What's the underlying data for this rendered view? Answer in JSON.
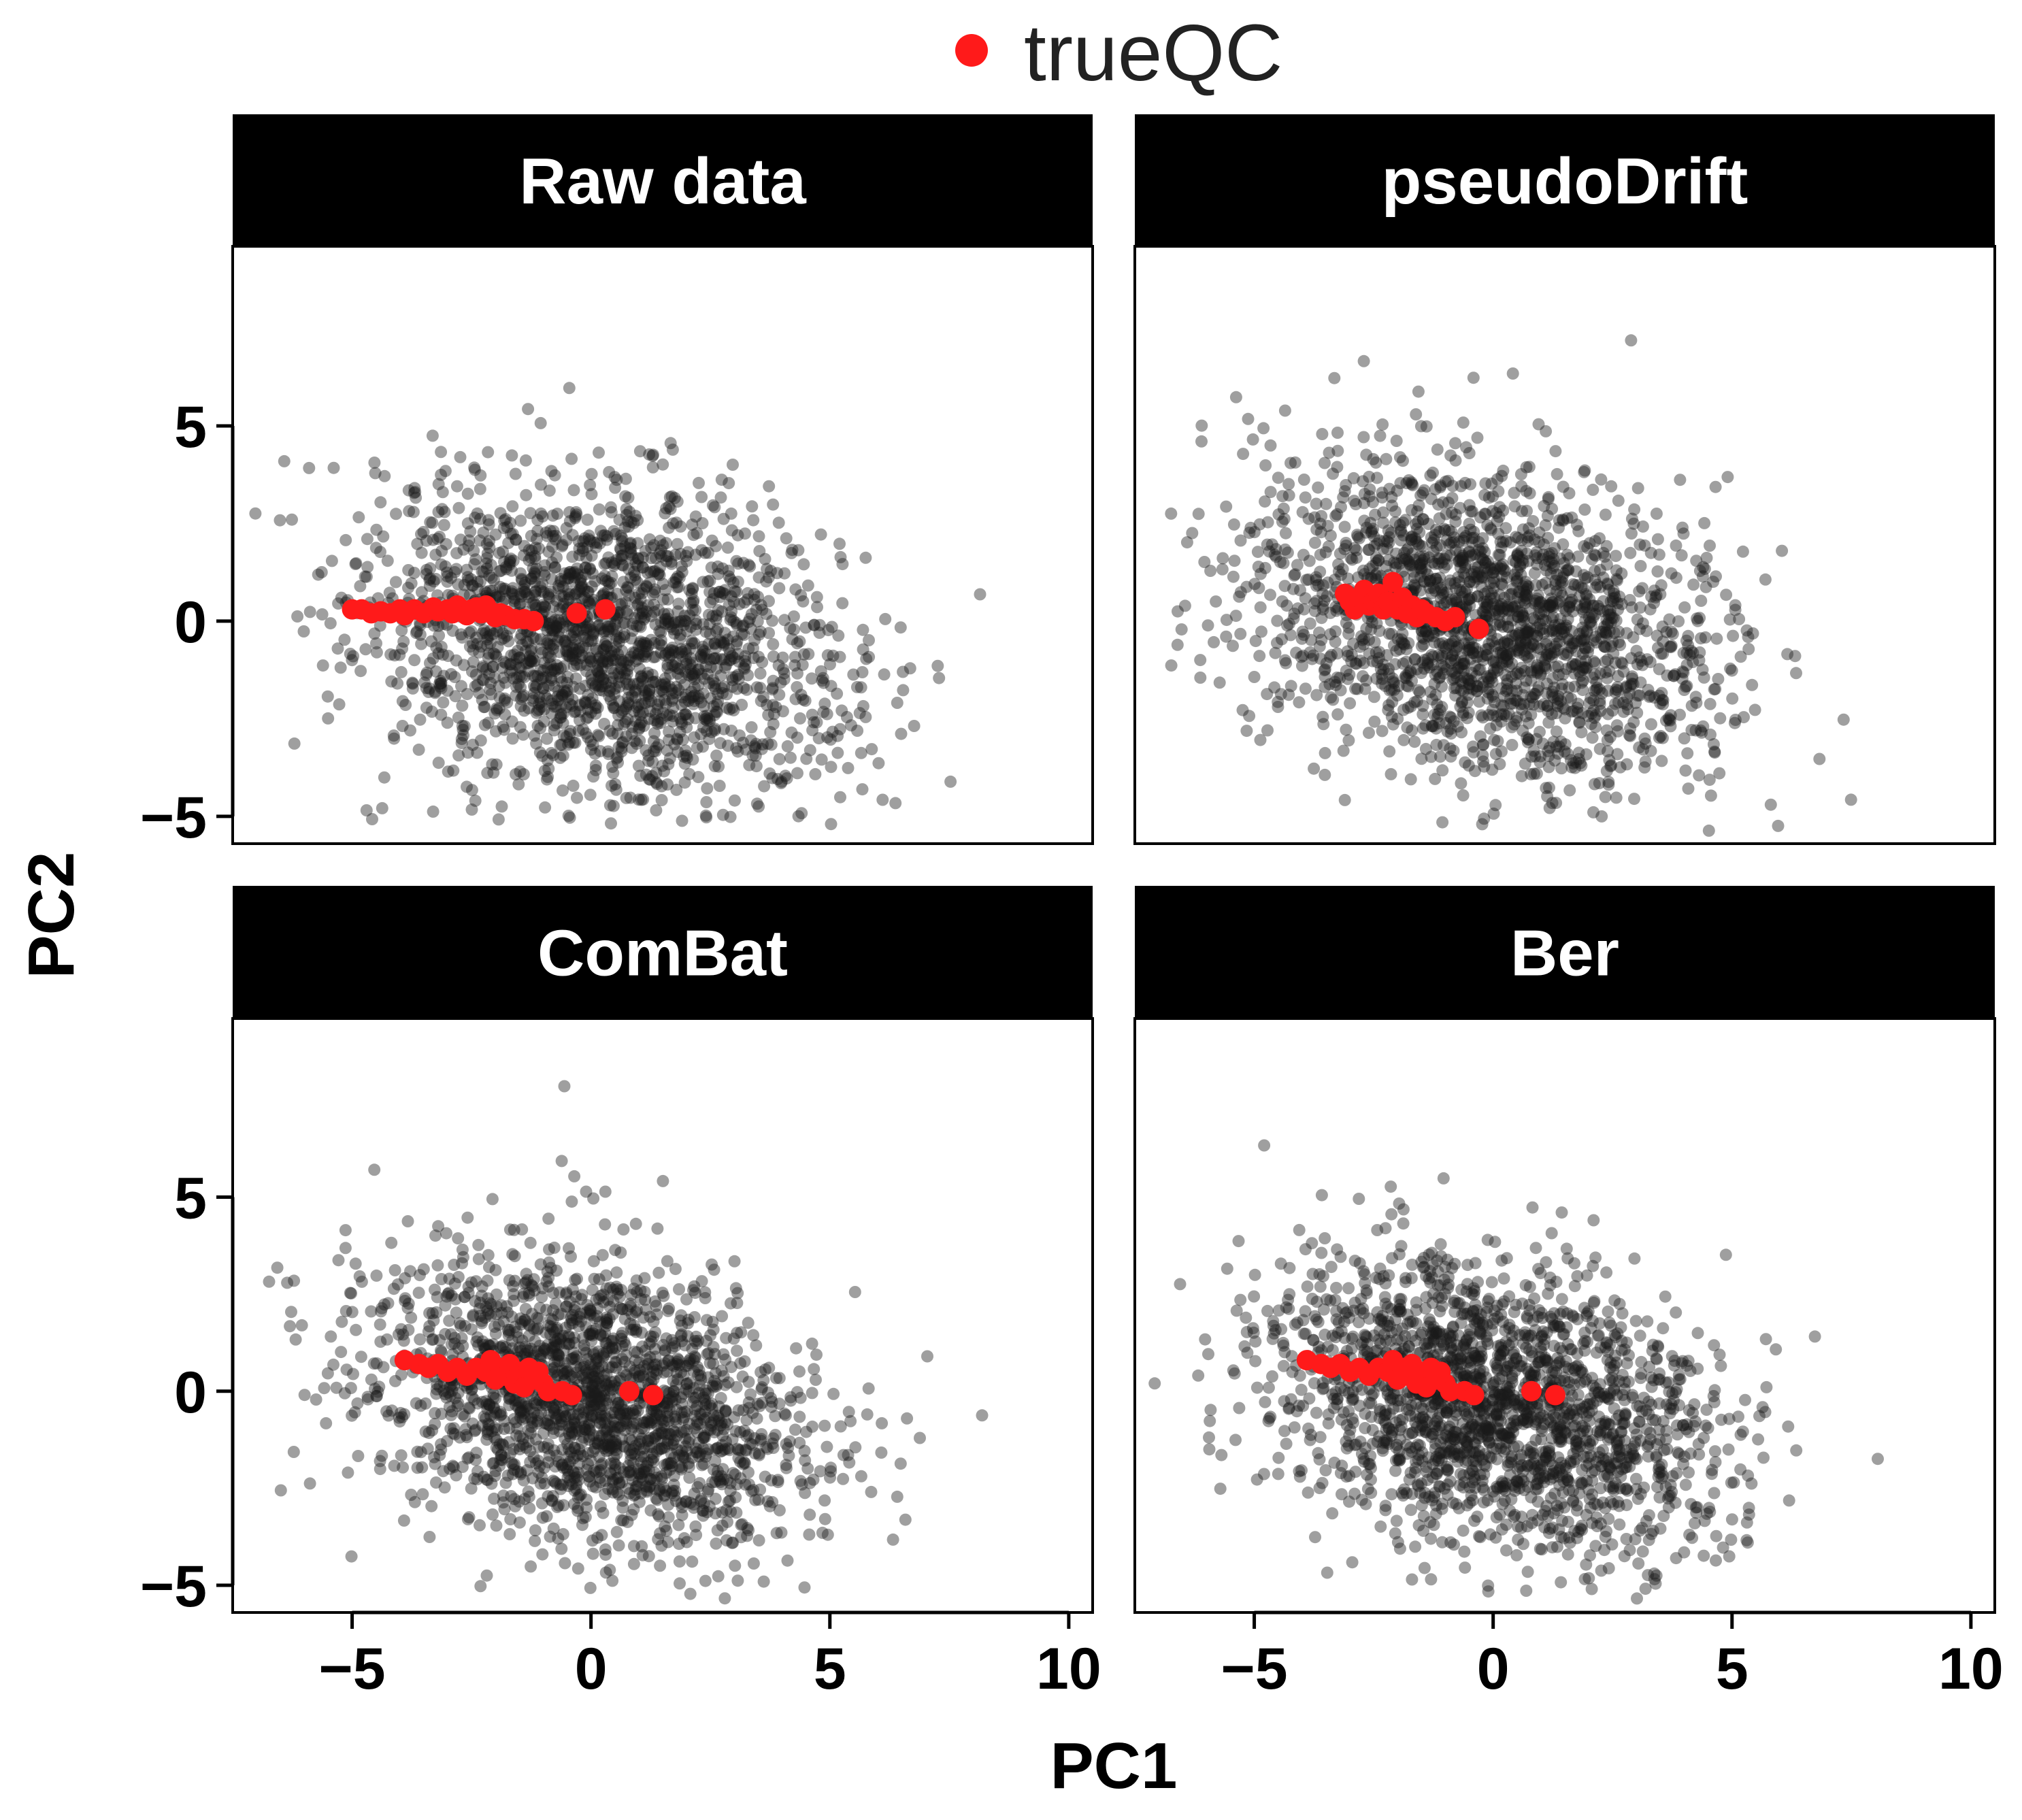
{
  "chart_data": {
    "type": "scatter",
    "xlabel": "PC1",
    "ylabel": "PC2",
    "xlim": [
      -7.5,
      10.5
    ],
    "ylim": [
      -5.7,
      9.6
    ],
    "x_ticks": [
      -5,
      0,
      5,
      10
    ],
    "x_tick_labels": [
      "−5",
      "0",
      "5",
      "10"
    ],
    "y_ticks": [
      -5,
      0,
      5
    ],
    "y_tick_labels": [
      "−5",
      "0",
      "5"
    ],
    "legend": {
      "label": "trueQC",
      "color": "#ff1a1a",
      "position": "top-center"
    },
    "colors": {
      "background_points": "#1a1a1a",
      "qc_points": "#ff1a1a",
      "strip": "#000000",
      "strip_text": "#ffffff"
    },
    "layout": "2x2 facets, shared axes",
    "panels": [
      {
        "title": "Raw data",
        "background_cloud": {
          "n": 2000,
          "center": [
            0.3,
            -0.5
          ],
          "sd": [
            2.5,
            2.0
          ],
          "correlation": -0.25
        },
        "qc_points": [
          [
            -5.0,
            0.3
          ],
          [
            -4.8,
            0.3
          ],
          [
            -4.6,
            0.2
          ],
          [
            -4.4,
            0.25
          ],
          [
            -4.2,
            0.2
          ],
          [
            -4.0,
            0.3
          ],
          [
            -3.9,
            0.15
          ],
          [
            -3.7,
            0.3
          ],
          [
            -3.5,
            0.2
          ],
          [
            -3.3,
            0.35
          ],
          [
            -3.2,
            0.25
          ],
          [
            -3.0,
            0.3
          ],
          [
            -2.9,
            0.2
          ],
          [
            -2.8,
            0.4
          ],
          [
            -2.7,
            0.3
          ],
          [
            -2.6,
            0.15
          ],
          [
            -2.5,
            0.3
          ],
          [
            -2.4,
            0.35
          ],
          [
            -2.3,
            0.2
          ],
          [
            -2.2,
            0.4
          ],
          [
            -2.1,
            0.25
          ],
          [
            -2.0,
            0.1
          ],
          [
            -1.9,
            0.2
          ],
          [
            -1.8,
            0.15
          ],
          [
            -1.6,
            0.05
          ],
          [
            -1.4,
            0.05
          ],
          [
            -1.2,
            0.0
          ],
          [
            -0.3,
            0.2
          ],
          [
            0.3,
            0.3
          ]
        ]
      },
      {
        "title": "pseudoDrift",
        "background_cloud": {
          "n": 2000,
          "center": [
            -0.2,
            0.0
          ],
          "sd": [
            2.4,
            2.0
          ],
          "correlation": -0.3
        },
        "qc_points": [
          [
            -3.1,
            0.7
          ],
          [
            -3.0,
            0.5
          ],
          [
            -2.9,
            0.3
          ],
          [
            -2.8,
            0.6
          ],
          [
            -2.7,
            0.8
          ],
          [
            -2.6,
            0.4
          ],
          [
            -2.5,
            0.5
          ],
          [
            -2.4,
            0.7
          ],
          [
            -2.3,
            0.3
          ],
          [
            -2.2,
            0.5
          ],
          [
            -2.1,
            1.0
          ],
          [
            -2.0,
            0.3
          ],
          [
            -1.9,
            0.6
          ],
          [
            -1.8,
            0.2
          ],
          [
            -1.7,
            0.4
          ],
          [
            -1.6,
            0.1
          ],
          [
            -1.5,
            0.3
          ],
          [
            -1.4,
            0.2
          ],
          [
            -1.2,
            0.1
          ],
          [
            -1.0,
            0.0
          ],
          [
            -0.8,
            0.1
          ],
          [
            -0.3,
            -0.2
          ]
        ]
      },
      {
        "title": "ComBat",
        "background_cloud": {
          "n": 2000,
          "center": [
            0.0,
            -0.3
          ],
          "sd": [
            2.3,
            1.9
          ],
          "correlation": -0.3
        },
        "qc_points": [
          [
            -3.9,
            0.8
          ],
          [
            -3.6,
            0.7
          ],
          [
            -3.4,
            0.6
          ],
          [
            -3.2,
            0.7
          ],
          [
            -3.0,
            0.5
          ],
          [
            -2.8,
            0.6
          ],
          [
            -2.6,
            0.4
          ],
          [
            -2.4,
            0.6
          ],
          [
            -2.2,
            0.5
          ],
          [
            -2.1,
            0.8
          ],
          [
            -2.0,
            0.3
          ],
          [
            -1.9,
            0.6
          ],
          [
            -1.8,
            0.4
          ],
          [
            -1.7,
            0.7
          ],
          [
            -1.6,
            0.2
          ],
          [
            -1.5,
            0.5
          ],
          [
            -1.4,
            0.1
          ],
          [
            -1.3,
            0.6
          ],
          [
            -1.2,
            0.3
          ],
          [
            -1.1,
            0.5
          ],
          [
            -1.0,
            0.2
          ],
          [
            -0.9,
            0.0
          ],
          [
            -0.6,
            0.0
          ],
          [
            -0.4,
            -0.1
          ],
          [
            0.8,
            0.0
          ],
          [
            1.3,
            -0.1
          ]
        ]
      },
      {
        "title": "Ber",
        "background_cloud": {
          "n": 2000,
          "center": [
            0.0,
            -0.3
          ],
          "sd": [
            2.3,
            1.9
          ],
          "correlation": -0.3
        },
        "qc_points": [
          [
            -3.9,
            0.8
          ],
          [
            -3.6,
            0.7
          ],
          [
            -3.4,
            0.6
          ],
          [
            -3.2,
            0.7
          ],
          [
            -3.0,
            0.5
          ],
          [
            -2.8,
            0.6
          ],
          [
            -2.6,
            0.4
          ],
          [
            -2.4,
            0.6
          ],
          [
            -2.2,
            0.5
          ],
          [
            -2.1,
            0.8
          ],
          [
            -2.0,
            0.3
          ],
          [
            -1.9,
            0.6
          ],
          [
            -1.8,
            0.4
          ],
          [
            -1.7,
            0.7
          ],
          [
            -1.6,
            0.2
          ],
          [
            -1.5,
            0.5
          ],
          [
            -1.4,
            0.1
          ],
          [
            -1.3,
            0.6
          ],
          [
            -1.2,
            0.3
          ],
          [
            -1.1,
            0.5
          ],
          [
            -1.0,
            0.2
          ],
          [
            -0.9,
            0.0
          ],
          [
            -0.6,
            0.0
          ],
          [
            -0.4,
            -0.1
          ],
          [
            0.8,
            0.0
          ],
          [
            1.3,
            -0.1
          ]
        ]
      }
    ]
  }
}
